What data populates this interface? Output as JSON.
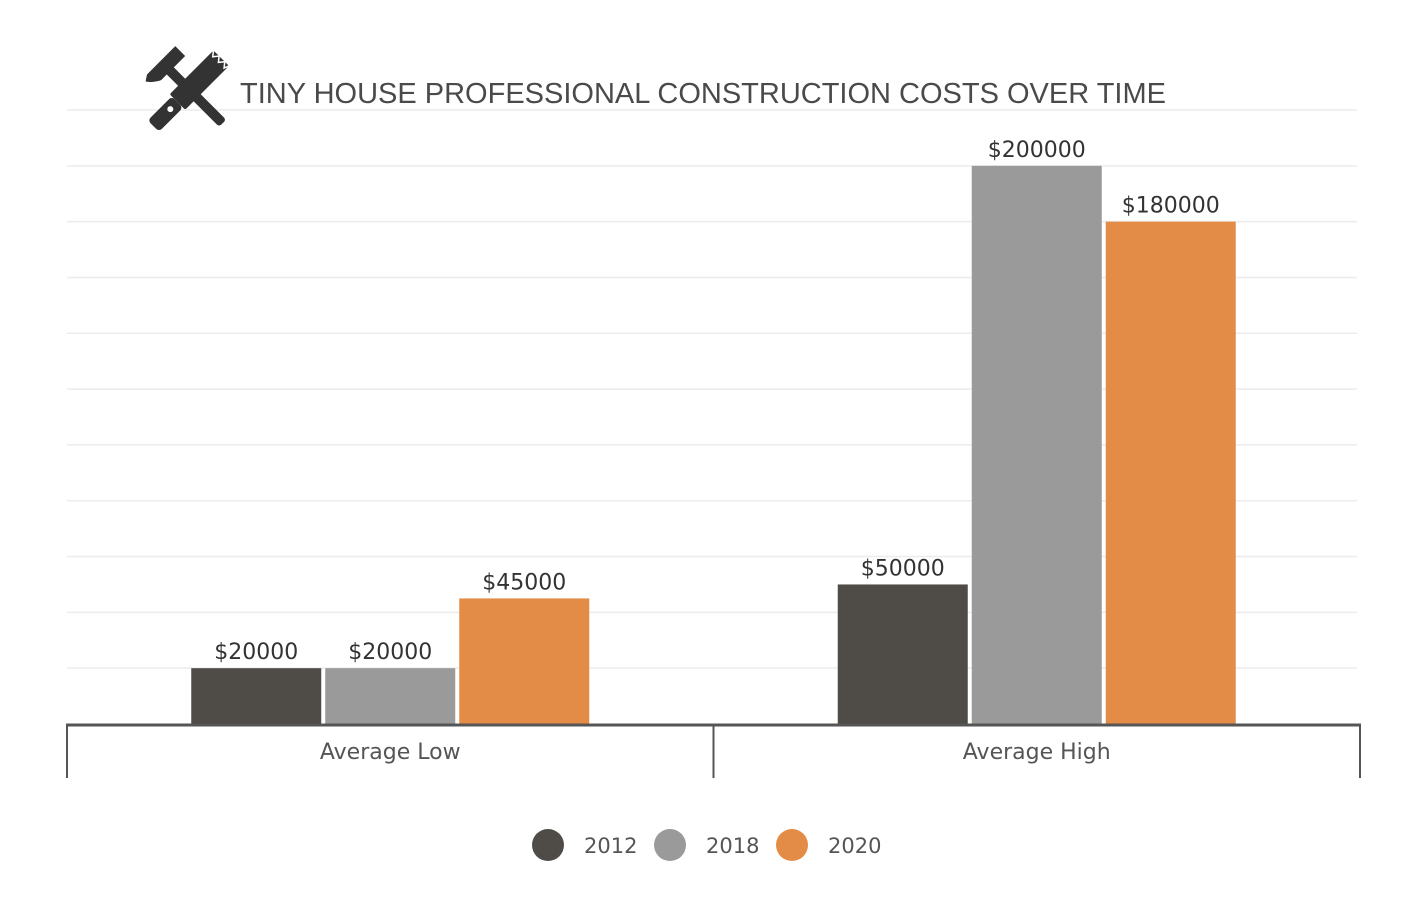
{
  "title": "TINY HOUSE PROFESSIONAL CONSTRUCTION COSTS OVER TIME",
  "icon": "hammer-and-saw-icon",
  "chart_data": {
    "type": "bar",
    "title": "TINY HOUSE PROFESSIONAL CONSTRUCTION COSTS OVER TIME",
    "categories": [
      "Average Low",
      "Average High"
    ],
    "series": [
      {
        "name": "2012",
        "values": [
          20000,
          50000
        ],
        "color": "#4f4c48"
      },
      {
        "name": "2018",
        "values": [
          20000,
          200000
        ],
        "color": "#9a9a9a"
      },
      {
        "name": "2020",
        "values": [
          45000,
          180000
        ],
        "color": "#e38c48"
      }
    ],
    "value_labels": [
      [
        "$20000",
        "$50000"
      ],
      [
        "$20000",
        "$200000"
      ],
      [
        "$45000",
        "$180000"
      ]
    ],
    "ylim": [
      0,
      220000
    ],
    "grid": true,
    "legend_position": "bottom-center",
    "xlabel": "",
    "ylabel": ""
  }
}
